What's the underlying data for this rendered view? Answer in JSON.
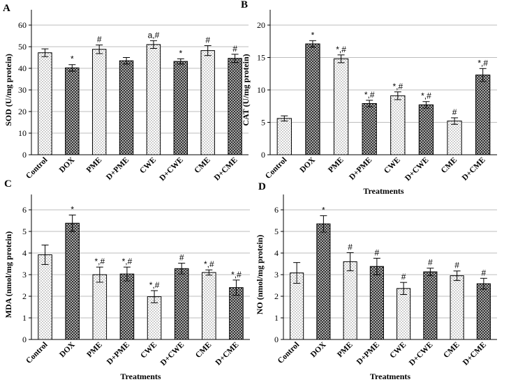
{
  "colors": {
    "bar_stroke": "#000000",
    "grid": "#bdbdbd",
    "axis": "#000000"
  },
  "chart_data": [
    {
      "panel": "A",
      "type": "bar",
      "categories": [
        "Control",
        "DOX",
        "PME",
        "D+PME",
        "CWE",
        "D+CWE",
        "CME",
        "D+CME"
      ],
      "patterns": [
        "dots",
        "cross",
        "dots",
        "cross",
        "dots",
        "cross",
        "dots",
        "cross"
      ],
      "values": [
        47.2,
        40.2,
        48.8,
        43.5,
        51.0,
        43.2,
        48.2,
        44.6
      ],
      "errors": [
        1.8,
        1.5,
        2.0,
        1.5,
        1.8,
        1.2,
        2.3,
        1.9
      ],
      "labels": [
        "",
        "*",
        "#",
        "",
        "a,#",
        "*",
        "#",
        "#"
      ],
      "xlabel": "",
      "ylabel": "SOD (U/mg protein)",
      "ylim": [
        0,
        60
      ],
      "yticks": [
        0,
        10,
        20,
        30,
        40,
        50,
        60
      ],
      "grid": true
    },
    {
      "panel": "B",
      "type": "bar",
      "categories": [
        "Control",
        "DOX",
        "PME",
        "D+PME",
        "CWE",
        "D+CWE",
        "CME",
        "D+CME"
      ],
      "patterns": [
        "dots",
        "cross",
        "dots",
        "cross",
        "dots",
        "cross",
        "dots",
        "cross"
      ],
      "values": [
        5.6,
        17.1,
        14.8,
        7.9,
        9.1,
        7.7,
        5.2,
        12.3
      ],
      "errors": [
        0.4,
        0.5,
        0.6,
        0.5,
        0.6,
        0.5,
        0.5,
        1.0
      ],
      "labels": [
        "",
        "*",
        "*,#",
        "*,#",
        "*,#",
        "*,#",
        "#",
        "*,#"
      ],
      "xlabel": "Treatments",
      "ylabel": "CAT (U/mg protein)",
      "ylim": [
        0,
        20
      ],
      "yticks": [
        0,
        5,
        10,
        15,
        20
      ],
      "grid": true
    },
    {
      "panel": "C",
      "type": "bar",
      "categories": [
        "Control",
        "DOX",
        "PME",
        "D+PME",
        "CWE",
        "D+CWE",
        "CME",
        "D+CME"
      ],
      "patterns": [
        "dots",
        "cross",
        "dots",
        "cross",
        "dots",
        "cross",
        "dots",
        "cross"
      ],
      "values": [
        3.92,
        5.38,
        3.0,
        3.03,
        1.98,
        3.28,
        3.1,
        2.4
      ],
      "errors": [
        0.45,
        0.38,
        0.35,
        0.32,
        0.28,
        0.25,
        0.12,
        0.35
      ],
      "labels": [
        "",
        "*",
        "*,#",
        "*,#",
        "*,#",
        "#",
        "*,#",
        "*,#"
      ],
      "xlabel": "Treatments",
      "ylabel": "MDA (nmol/mg protein)",
      "ylim": [
        0,
        6
      ],
      "yticks": [
        0,
        1,
        2,
        3,
        4,
        5,
        6
      ],
      "grid": true
    },
    {
      "panel": "D",
      "type": "bar",
      "categories": [
        "Control",
        "DOX",
        "PME",
        "D+PME",
        "CWE",
        "D+CWE",
        "CME",
        "D+CME"
      ],
      "patterns": [
        "dots",
        "cross",
        "dots",
        "cross",
        "dots",
        "cross",
        "dots",
        "cross"
      ],
      "values": [
        3.08,
        5.35,
        3.6,
        3.38,
        2.36,
        3.13,
        2.95,
        2.58
      ],
      "errors": [
        0.48,
        0.38,
        0.42,
        0.38,
        0.28,
        0.17,
        0.22,
        0.25
      ],
      "labels": [
        "",
        "*",
        "#",
        "#",
        "#",
        "#",
        "#",
        "#"
      ],
      "xlabel": "Treatments",
      "ylabel": "NO (nmol/mg protein)",
      "ylim": [
        0,
        6
      ],
      "yticks": [
        0,
        1,
        2,
        3,
        4,
        5,
        6
      ],
      "grid": true
    }
  ]
}
